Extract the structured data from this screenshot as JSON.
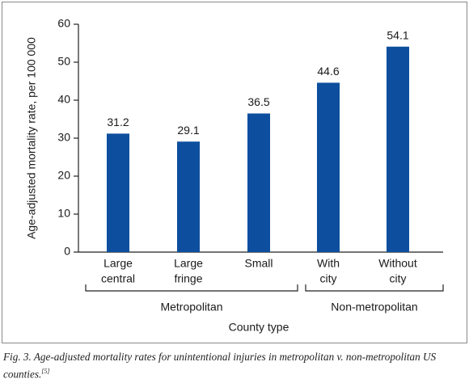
{
  "chart_data": {
    "type": "bar",
    "ylabel": "Age-adjusted mortality rate, per 100 000",
    "xlabel": "County type",
    "categories": [
      [
        "Large",
        "central"
      ],
      [
        "Large",
        "fringe"
      ],
      [
        "Small"
      ],
      [
        "With",
        "city"
      ],
      [
        "Without",
        "city"
      ]
    ],
    "values": [
      31.2,
      29.1,
      36.5,
      44.6,
      54.1
    ],
    "color": "#0d4f9e",
    "ylim": [
      0,
      60
    ],
    "yticks": [
      0,
      10,
      20,
      30,
      40,
      50,
      60
    ],
    "groups": [
      "Metropolitan",
      "Non-metropolitan"
    ],
    "caption": "Fig. 3. Age-adjusted mortality rates for unintentional injuries in metropolitan v. non-metropolitan US counties.",
    "caption_ref": "[5]"
  }
}
